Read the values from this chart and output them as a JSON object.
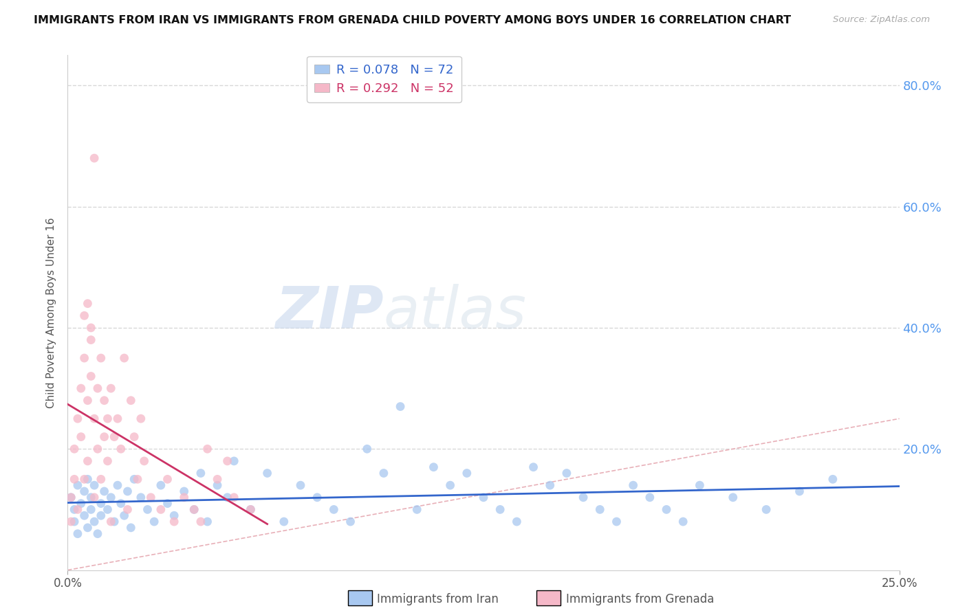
{
  "title": "IMMIGRANTS FROM IRAN VS IMMIGRANTS FROM GRENADA CHILD POVERTY AMONG BOYS UNDER 16 CORRELATION CHART",
  "source": "Source: ZipAtlas.com",
  "ylabel": "Child Poverty Among Boys Under 16",
  "xlabel_iran": "Immigrants from Iran",
  "xlabel_grenada": "Immigrants from Grenada",
  "xlim": [
    0.0,
    0.25
  ],
  "ylim": [
    0.0,
    0.85
  ],
  "yticks": [
    0.0,
    0.2,
    0.4,
    0.6,
    0.8
  ],
  "xtick_labels": [
    "0.0%",
    "25.0%"
  ],
  "color_iran": "#a8c8f0",
  "color_grenada": "#f5b8c8",
  "line_color_iran": "#3366cc",
  "line_color_grenada": "#cc3366",
  "diag_color": "#e8b0b8",
  "R_iran": 0.078,
  "N_iran": 72,
  "R_grenada": 0.292,
  "N_grenada": 52,
  "watermark_zip": "ZIP",
  "watermark_atlas": "atlas",
  "iran_x": [
    0.001,
    0.002,
    0.002,
    0.003,
    0.003,
    0.004,
    0.005,
    0.005,
    0.006,
    0.006,
    0.007,
    0.007,
    0.008,
    0.008,
    0.009,
    0.01,
    0.01,
    0.011,
    0.012,
    0.013,
    0.014,
    0.015,
    0.016,
    0.017,
    0.018,
    0.019,
    0.02,
    0.022,
    0.024,
    0.026,
    0.028,
    0.03,
    0.032,
    0.035,
    0.038,
    0.04,
    0.042,
    0.045,
    0.048,
    0.05,
    0.055,
    0.06,
    0.065,
    0.07,
    0.075,
    0.08,
    0.085,
    0.09,
    0.095,
    0.1,
    0.105,
    0.11,
    0.115,
    0.12,
    0.125,
    0.13,
    0.135,
    0.14,
    0.145,
    0.15,
    0.155,
    0.16,
    0.165,
    0.17,
    0.175,
    0.18,
    0.185,
    0.19,
    0.2,
    0.21,
    0.22,
    0.23
  ],
  "iran_y": [
    0.12,
    0.1,
    0.08,
    0.14,
    0.06,
    0.11,
    0.09,
    0.13,
    0.07,
    0.15,
    0.1,
    0.12,
    0.08,
    0.14,
    0.06,
    0.11,
    0.09,
    0.13,
    0.1,
    0.12,
    0.08,
    0.14,
    0.11,
    0.09,
    0.13,
    0.07,
    0.15,
    0.12,
    0.1,
    0.08,
    0.14,
    0.11,
    0.09,
    0.13,
    0.1,
    0.16,
    0.08,
    0.14,
    0.12,
    0.18,
    0.1,
    0.16,
    0.08,
    0.14,
    0.12,
    0.1,
    0.08,
    0.2,
    0.16,
    0.27,
    0.1,
    0.17,
    0.14,
    0.16,
    0.12,
    0.1,
    0.08,
    0.17,
    0.14,
    0.16,
    0.12,
    0.1,
    0.08,
    0.14,
    0.12,
    0.1,
    0.08,
    0.14,
    0.12,
    0.1,
    0.13,
    0.15
  ],
  "grenada_x": [
    0.001,
    0.001,
    0.002,
    0.002,
    0.003,
    0.003,
    0.004,
    0.004,
    0.005,
    0.005,
    0.006,
    0.006,
    0.007,
    0.007,
    0.008,
    0.008,
    0.009,
    0.009,
    0.01,
    0.01,
    0.011,
    0.011,
    0.012,
    0.012,
    0.013,
    0.013,
    0.014,
    0.015,
    0.016,
    0.017,
    0.018,
    0.019,
    0.02,
    0.021,
    0.022,
    0.023,
    0.025,
    0.028,
    0.03,
    0.032,
    0.035,
    0.038,
    0.04,
    0.042,
    0.045,
    0.048,
    0.05,
    0.055,
    0.005,
    0.006,
    0.007,
    0.008
  ],
  "grenada_y": [
    0.12,
    0.08,
    0.15,
    0.2,
    0.25,
    0.1,
    0.22,
    0.3,
    0.35,
    0.15,
    0.28,
    0.18,
    0.32,
    0.38,
    0.25,
    0.12,
    0.3,
    0.2,
    0.35,
    0.15,
    0.28,
    0.22,
    0.18,
    0.25,
    0.3,
    0.08,
    0.22,
    0.25,
    0.2,
    0.35,
    0.1,
    0.28,
    0.22,
    0.15,
    0.25,
    0.18,
    0.12,
    0.1,
    0.15,
    0.08,
    0.12,
    0.1,
    0.08,
    0.2,
    0.15,
    0.18,
    0.12,
    0.1,
    0.42,
    0.44,
    0.4,
    0.68
  ]
}
